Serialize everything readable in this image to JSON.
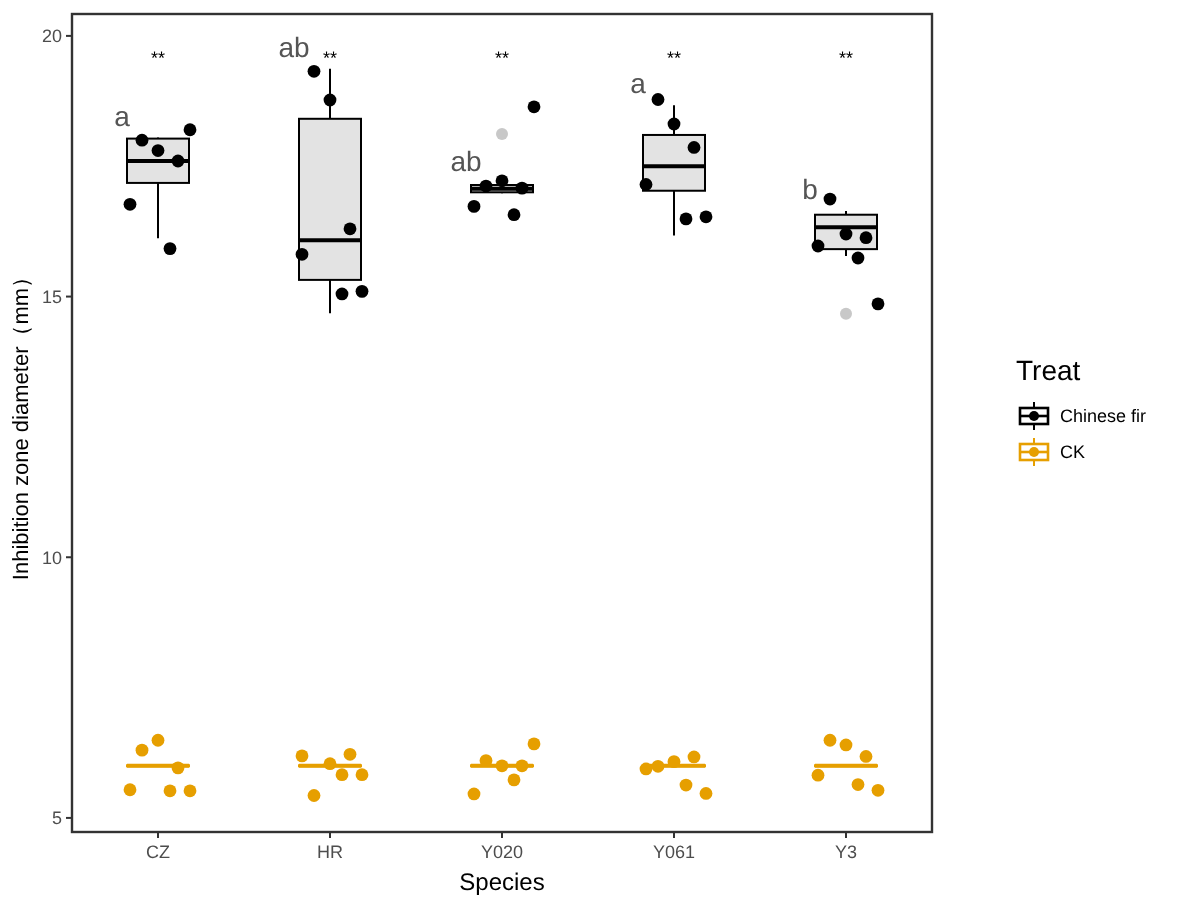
{
  "chart_data": {
    "type": "box",
    "xlabel": "Species",
    "ylabel": "Inhibition zone diameter（mm）",
    "legend_title": "Treat",
    "legend": "right",
    "grid": false,
    "categories": [
      "CZ",
      "HR",
      "Y020",
      "Y061",
      "Y3"
    ],
    "ylim": [
      4.73,
      20.42
    ],
    "yticks": [
      5,
      10,
      15,
      20
    ],
    "series": [
      {
        "name": "Chinese fir",
        "type": "box",
        "color": "#000000",
        "boxes": [
          {
            "low": 16.12,
            "q1": 17.18,
            "median": 17.6,
            "q3": 18.03,
            "high": 18.05
          },
          {
            "low": 14.68,
            "q1": 15.32,
            "median": 16.08,
            "q3": 18.41,
            "high": 19.37
          },
          {
            "low": 16.98,
            "q1": 17.0,
            "median": 17.07,
            "q3": 17.14,
            "high": 17.18,
            "outliers": [
              18.12
            ]
          },
          {
            "low": 16.17,
            "q1": 17.03,
            "median": 17.5,
            "q3": 18.1,
            "high": 18.67
          },
          {
            "low": 15.78,
            "q1": 15.91,
            "median": 16.33,
            "q3": 16.57,
            "high": 16.64,
            "outliers": [
              14.67
            ]
          }
        ]
      },
      {
        "name": "CK",
        "type": "box",
        "color": "#e69f00",
        "boxes": [
          {
            "low": 5.98,
            "q1": 5.99,
            "median": 6.0,
            "q3": 6.01,
            "high": 6.02
          },
          {
            "low": 5.98,
            "q1": 5.99,
            "median": 6.0,
            "q3": 6.01,
            "high": 6.02
          },
          {
            "low": 5.98,
            "q1": 5.99,
            "median": 6.0,
            "q3": 6.01,
            "high": 6.02
          },
          {
            "low": 5.98,
            "q1": 5.99,
            "median": 6.0,
            "q3": 6.01,
            "high": 6.02
          },
          {
            "low": 5.98,
            "q1": 5.99,
            "median": 6.0,
            "q3": 6.01,
            "high": 6.02
          }
        ]
      },
      {
        "type": "scatter",
        "color": "#000000",
        "x": [
          "CZ",
          "CZ",
          "CZ",
          "CZ",
          "CZ",
          "CZ",
          "HR",
          "HR",
          "HR",
          "HR",
          "HR",
          "HR",
          "Y020",
          "Y020",
          "Y020",
          "Y020",
          "Y020",
          "Y020",
          "Y061",
          "Y061",
          "Y061",
          "Y061",
          "Y061",
          "Y061",
          "Y3",
          "Y3",
          "Y3",
          "Y3",
          "Y3",
          "Y3"
        ],
        "values": [
          18.0,
          17.8,
          17.6,
          16.77,
          15.92,
          18.2,
          19.32,
          18.77,
          16.3,
          15.81,
          15.05,
          15.1,
          17.12,
          17.22,
          17.08,
          16.73,
          16.57,
          18.64,
          18.78,
          18.31,
          17.86,
          17.15,
          16.49,
          16.53,
          16.87,
          16.2,
          16.13,
          15.97,
          15.74,
          14.86
        ]
      },
      {
        "type": "scatter",
        "color": "#e69f00",
        "x": [
          "CZ",
          "CZ",
          "CZ",
          "CZ",
          "CZ",
          "CZ",
          "HR",
          "HR",
          "HR",
          "HR",
          "HR",
          "HR",
          "Y020",
          "Y020",
          "Y020",
          "Y020",
          "Y020",
          "Y020",
          "Y061",
          "Y061",
          "Y061",
          "Y061",
          "Y061",
          "Y061",
          "Y3",
          "Y3",
          "Y3",
          "Y3",
          "Y3",
          "Y3"
        ],
        "values": [
          6.3,
          6.49,
          5.96,
          5.54,
          5.52,
          5.52,
          5.43,
          6.04,
          6.22,
          6.19,
          5.83,
          5.83,
          6.1,
          6.0,
          6.0,
          5.46,
          5.73,
          6.42,
          5.99,
          6.08,
          6.17,
          5.94,
          5.63,
          5.47,
          6.49,
          6.4,
          6.18,
          5.82,
          5.64,
          5.53
        ]
      }
    ],
    "annotations": [
      "**",
      "**",
      "**",
      "**",
      "**",
      "a",
      "ab",
      "ab",
      "a",
      "b"
    ]
  }
}
